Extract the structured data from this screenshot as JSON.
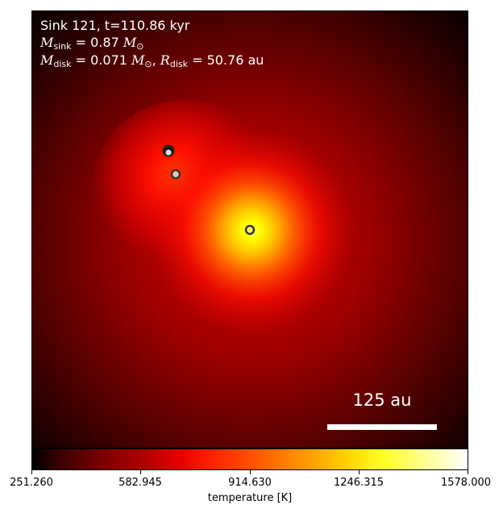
{
  "annotation": {
    "line1": "Sink 121, t=110.86 kyr",
    "sink_mass_value": "= 0.87",
    "disk_mass_value": "= 0.071",
    "disk_radius_value": "= 50.76 au",
    "M": "M",
    "R": "R",
    "sink_sub": "sink",
    "disk_sub": "disk",
    "msun": "M",
    "sun_sub": "⊙"
  },
  "scalebar": {
    "label": "125 au"
  },
  "colorbar": {
    "ticks": [
      "251.260",
      "582.945",
      "914.630",
      "1246.315",
      "1578.000"
    ],
    "label": "temperature [K]",
    "colormap": "hot"
  },
  "sinks": [
    {
      "name": "sink-dark",
      "fill": "#111111"
    },
    {
      "name": "sink-light",
      "fill": "#f2c4ac"
    },
    {
      "name": "sink-primary",
      "fill": "#ffff60"
    }
  ]
}
